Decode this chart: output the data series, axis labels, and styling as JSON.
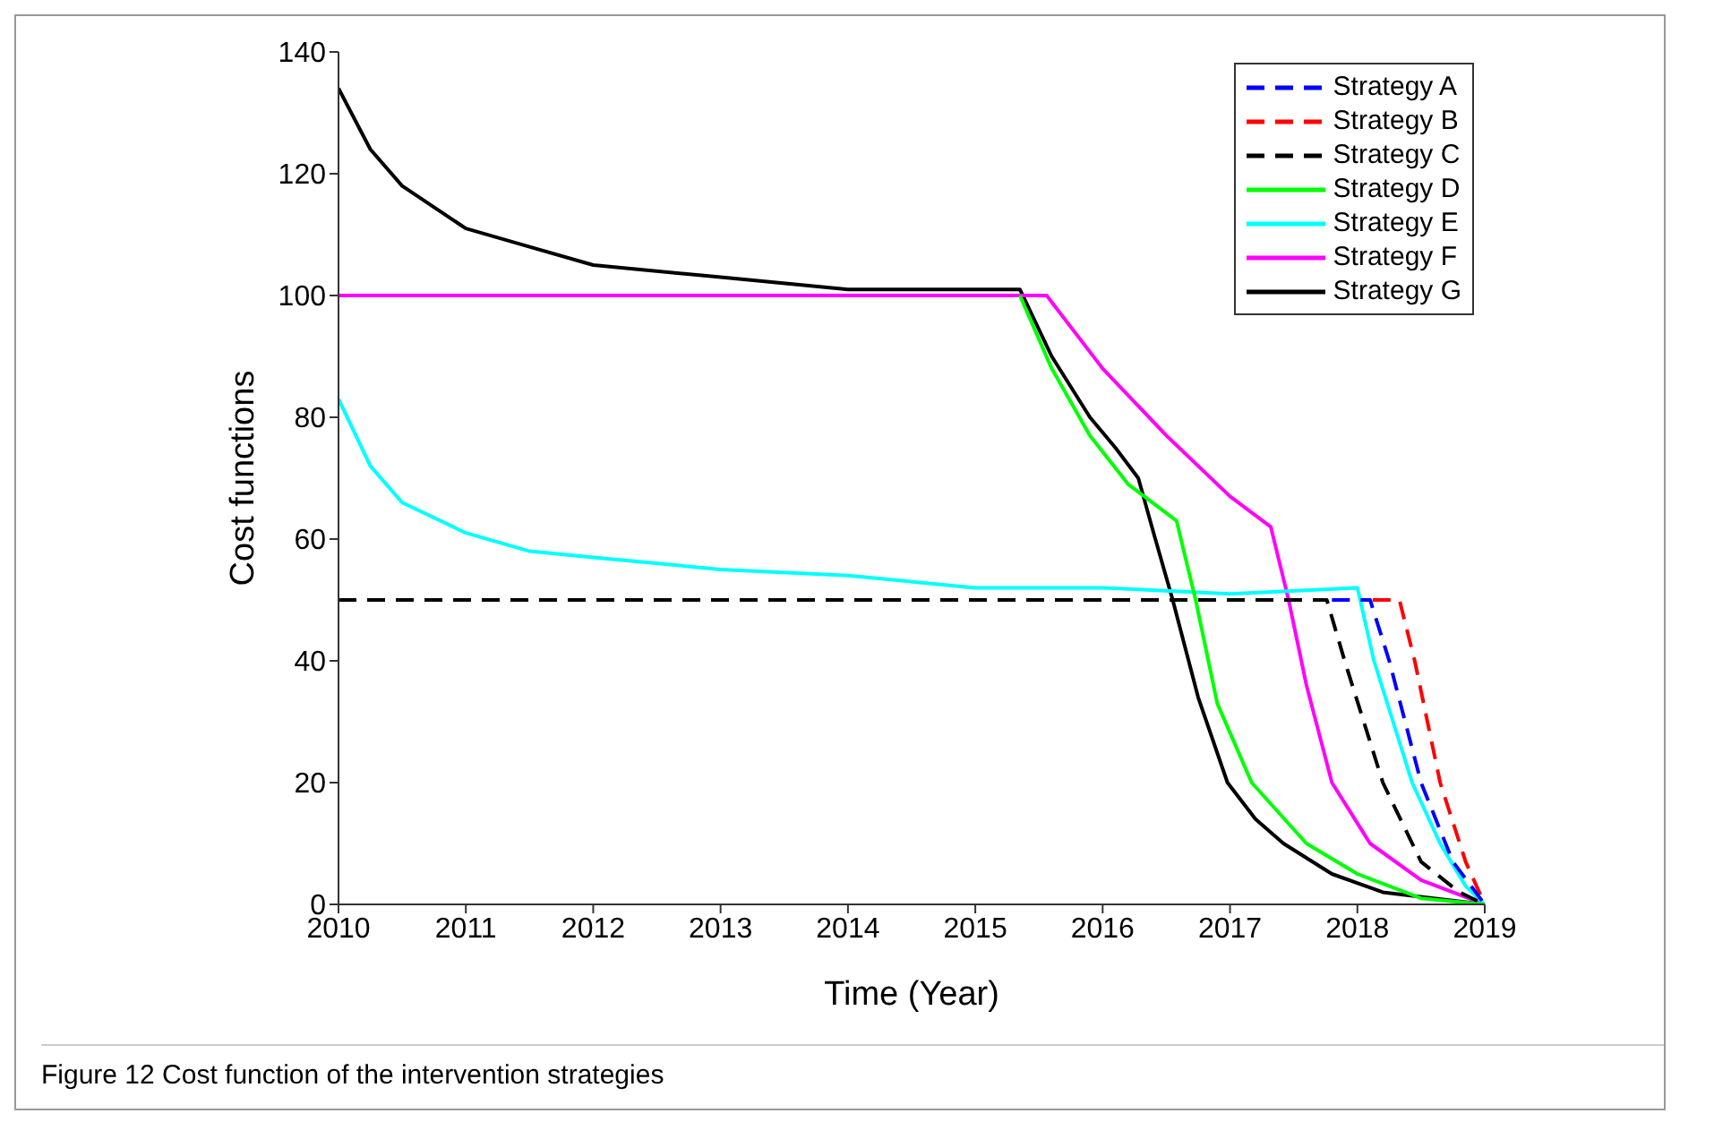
{
  "chart_data": {
    "type": "line",
    "xlabel": "Time (Year)",
    "ylabel": "Cost functions",
    "annotations": [
      "Figure 12  Cost function of the intervention strategies"
    ],
    "xlim": [
      2010,
      2019
    ],
    "xticks": [
      2010,
      2011,
      2012,
      2013,
      2014,
      2015,
      2016,
      2017,
      2018,
      2019
    ],
    "ylim": [
      0,
      140
    ],
    "yticks": [
      0,
      20,
      40,
      60,
      80,
      100,
      120,
      140
    ],
    "grid": false,
    "legend": "top right",
    "marker": "none",
    "series": [
      {
        "name": "Strategy A",
        "color": "#0000ff",
        "line_style": "dashed",
        "x": [
          2017.8,
          2018.1,
          2018.25,
          2018.5,
          2018.75,
          2019
        ],
        "values": [
          50,
          50,
          40,
          20,
          7,
          0
        ]
      },
      {
        "name": "Strategy B",
        "color": "#ff0000",
        "line_style": "dashed",
        "x": [
          2018.12,
          2018.33,
          2018.45,
          2018.65,
          2018.85,
          2019
        ],
        "values": [
          50,
          50,
          40,
          20,
          7,
          0
        ]
      },
      {
        "name": "Strategy C",
        "color": "#000000",
        "line_style": "dashed",
        "x": [
          2010,
          2017.76,
          2017.9,
          2018.2,
          2018.5,
          2018.8,
          2019
        ],
        "values": [
          50,
          50,
          40,
          20,
          7,
          2,
          0
        ]
      },
      {
        "name": "Strategy D",
        "color": "#00ff00",
        "line_style": "solid",
        "x": [
          2015.35,
          2015.6,
          2015.9,
          2016.2,
          2016.58,
          2016.73,
          2016.9,
          2017.17,
          2017.6,
          2018,
          2018.5,
          2019
        ],
        "values": [
          100,
          88,
          77,
          69,
          63,
          50,
          33,
          20,
          10,
          5,
          1,
          0
        ]
      },
      {
        "name": "Strategy E",
        "color": "#00ffff",
        "line_style": "solid",
        "x": [
          2010,
          2010.25,
          2010.5,
          2011,
          2011.5,
          2012,
          2013,
          2014,
          2015,
          2016,
          2017,
          2018,
          2018.13,
          2018.43,
          2018.65,
          2018.85,
          2019
        ],
        "values": [
          83,
          72,
          66,
          61,
          58,
          57,
          55,
          54,
          52,
          52,
          51,
          52,
          40,
          20,
          10,
          3,
          0
        ]
      },
      {
        "name": "Strategy F",
        "color": "#ff00ff",
        "line_style": "solid",
        "x": [
          2010,
          2015.56,
          2016,
          2016.5,
          2017,
          2017.32,
          2017.46,
          2017.6,
          2017.8,
          2018.1,
          2018.5,
          2019
        ],
        "values": [
          100,
          100,
          88,
          77,
          67,
          62,
          50,
          36,
          20,
          10,
          4,
          0
        ]
      },
      {
        "name": "Strategy G",
        "color": "#000000",
        "line_style": "solid",
        "x": [
          2010,
          2010.25,
          2010.5,
          2011,
          2011.5,
          2012,
          2013,
          2014,
          2015,
          2015.35,
          2015.6,
          2015.9,
          2016.1,
          2016.28,
          2016.4,
          2016.55,
          2016.75,
          2016.98,
          2017.2,
          2017.42,
          2017.8,
          2018.2,
          2018.6,
          2019
        ],
        "values": [
          134,
          124,
          118,
          111,
          108,
          105,
          103,
          101,
          101,
          101,
          90,
          80,
          75,
          70,
          61,
          50,
          34,
          20,
          14,
          10,
          5,
          2,
          1,
          0
        ]
      }
    ]
  }
}
